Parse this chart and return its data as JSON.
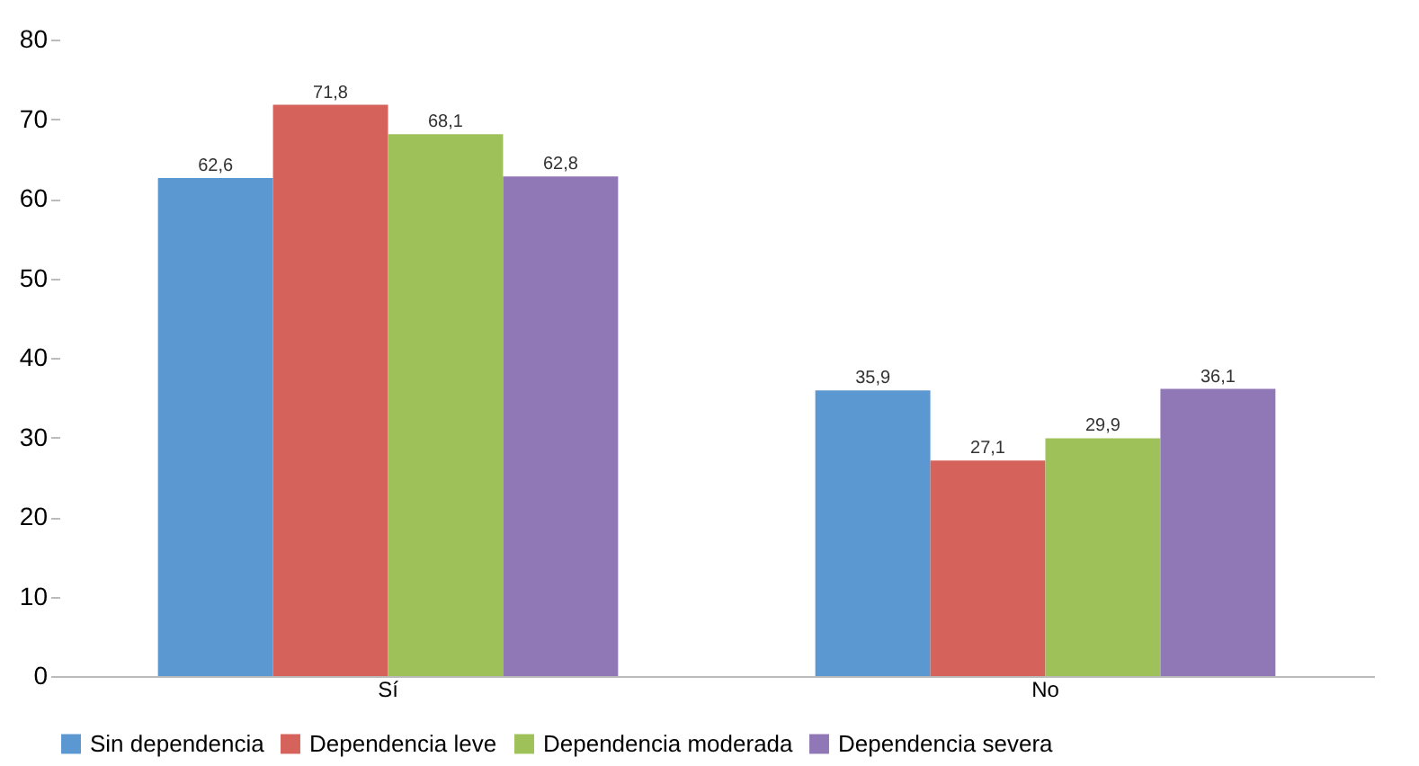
{
  "chart_data": {
    "type": "bar",
    "categories": [
      "Sí",
      "No"
    ],
    "series": [
      {
        "name": "Sin dependencia",
        "color": "#5b97d1",
        "values": [
          62.6,
          35.9
        ],
        "value_labels": [
          "62,6",
          "35,9"
        ]
      },
      {
        "name": "Dependencia leve",
        "color": "#d5625b",
        "values": [
          71.8,
          27.1
        ],
        "value_labels": [
          "71,8",
          "27,1"
        ]
      },
      {
        "name": "Dependencia moderada",
        "color": "#9fc15a",
        "values": [
          68.1,
          29.9
        ],
        "value_labels": [
          "68,1",
          "29,9"
        ]
      },
      {
        "name": "Dependencia severa",
        "color": "#9077b6",
        "values": [
          62.8,
          36.1
        ],
        "value_labels": [
          "62,8",
          "36,1"
        ]
      }
    ],
    "ylim": [
      0,
      80
    ],
    "yticks": [
      0,
      10,
      20,
      30,
      40,
      50,
      60,
      70,
      80
    ],
    "grid": false,
    "legend": "bottom"
  }
}
